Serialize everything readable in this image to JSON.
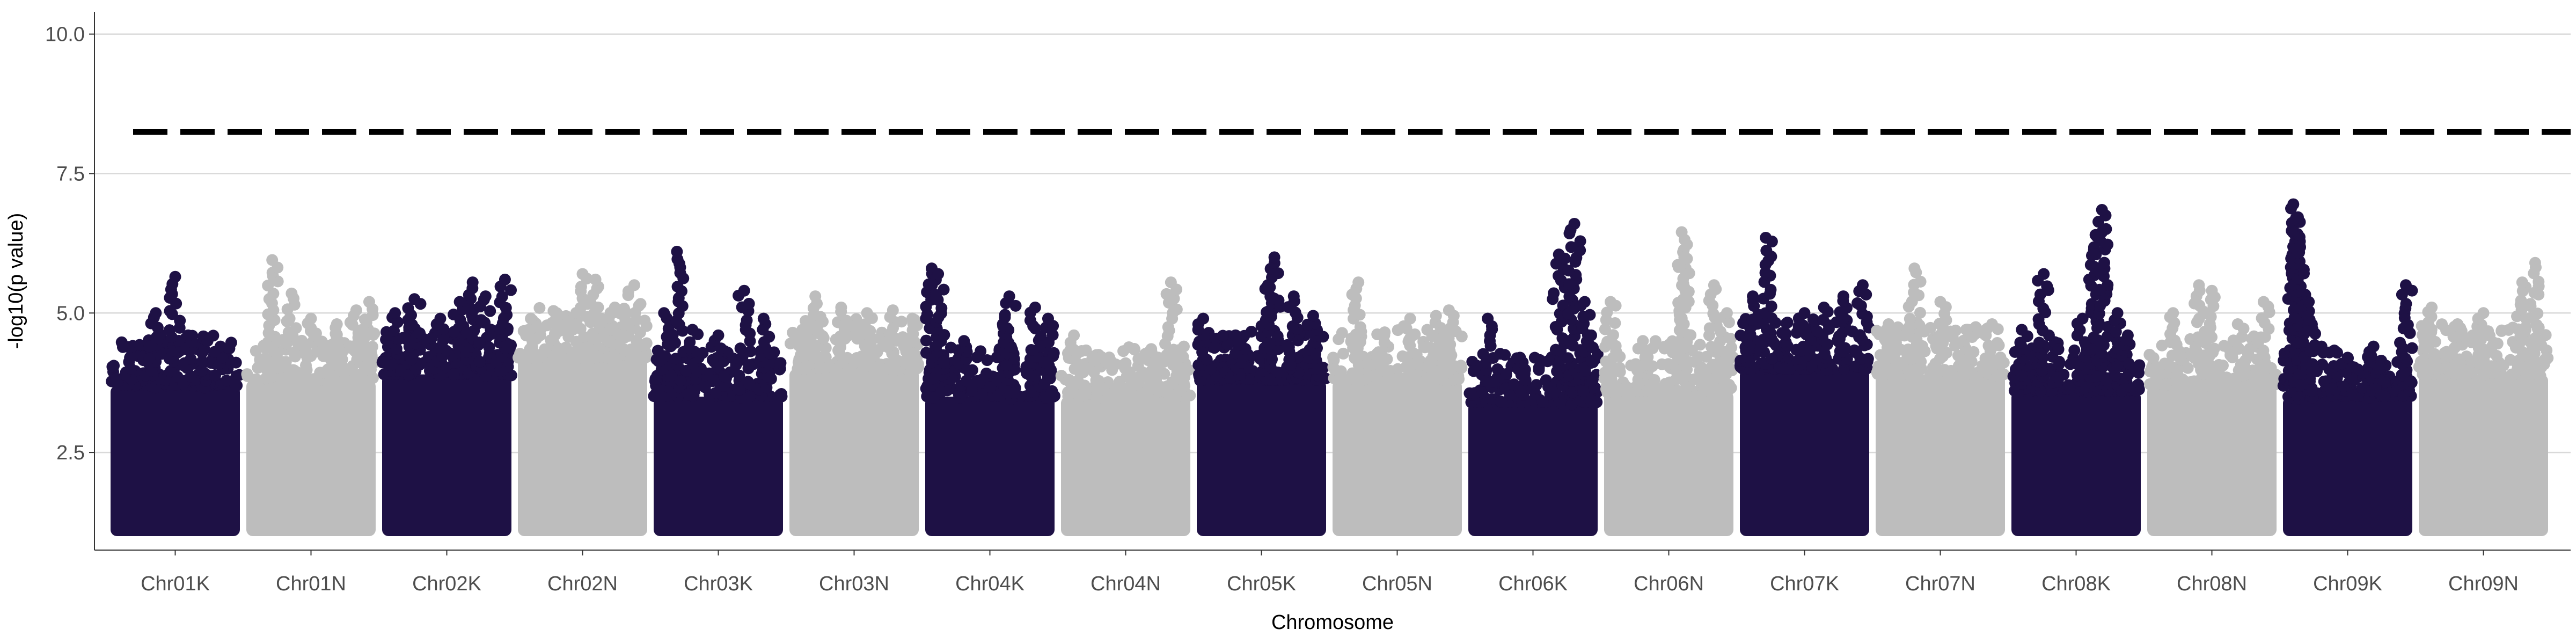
{
  "chart_data": {
    "type": "scatter",
    "subtype": "manhattan",
    "title": "",
    "xlabel": "Chromosome",
    "ylabel": "-log10(p value)",
    "ylim": [
      0.75,
      10.4
    ],
    "yticks": [
      2.5,
      5.0,
      7.5,
      10.0
    ],
    "ytick_labels": [
      "2.5",
      "5.0",
      "7.5",
      "10.0"
    ],
    "categories": [
      "Chr01K",
      "Chr01N",
      "Chr02K",
      "Chr02N",
      "Chr03K",
      "Chr03N",
      "Chr04K",
      "Chr04N",
      "Chr05K",
      "Chr05N",
      "Chr06K",
      "Chr06N",
      "Chr07K",
      "Chr07N",
      "Chr08K",
      "Chr08N",
      "Chr09K",
      "Chr09N"
    ],
    "point_colors": [
      "#1e1145",
      "#bdbdbd"
    ],
    "threshold": 8.25,
    "threshold_style": "dashed",
    "grid": "horizontal-major",
    "legend": "none",
    "min_plotted_value": 1.0,
    "chromosomes": [
      {
        "name": "Chr01K",
        "max": 5.65,
        "body_top": 3.7,
        "peaks": [
          [
            0.15,
            4.2
          ],
          [
            0.3,
            4.4
          ],
          [
            0.35,
            5.0
          ],
          [
            0.5,
            5.65
          ],
          [
            0.6,
            4.6
          ],
          [
            0.75,
            4.5
          ],
          [
            0.85,
            4.4
          ]
        ]
      },
      {
        "name": "Chr01N",
        "max": 5.95,
        "body_top": 3.8,
        "peaks": [
          [
            0.2,
            5.95
          ],
          [
            0.35,
            5.35
          ],
          [
            0.5,
            4.9
          ],
          [
            0.7,
            4.8
          ],
          [
            0.85,
            5.05
          ],
          [
            0.95,
            5.2
          ]
        ]
      },
      {
        "name": "Chr02K",
        "max": 5.6,
        "body_top": 3.9,
        "peaks": [
          [
            0.1,
            5.0
          ],
          [
            0.25,
            5.25
          ],
          [
            0.45,
            4.9
          ],
          [
            0.6,
            5.2
          ],
          [
            0.7,
            5.55
          ],
          [
            0.8,
            5.3
          ],
          [
            0.95,
            5.6
          ]
        ]
      },
      {
        "name": "Chr02N",
        "max": 5.7,
        "body_top": 4.2,
        "peaks": [
          [
            0.1,
            4.9
          ],
          [
            0.3,
            5.0
          ],
          [
            0.5,
            5.7
          ],
          [
            0.6,
            5.6
          ],
          [
            0.75,
            5.1
          ],
          [
            0.9,
            5.5
          ]
        ]
      },
      {
        "name": "Chr03K",
        "max": 6.1,
        "body_top": 3.5,
        "peaks": [
          [
            0.08,
            5.0
          ],
          [
            0.18,
            6.1
          ],
          [
            0.3,
            4.7
          ],
          [
            0.5,
            4.6
          ],
          [
            0.7,
            5.4
          ],
          [
            0.85,
            4.9
          ]
        ]
      },
      {
        "name": "Chr03N",
        "max": 5.3,
        "body_top": 4.0,
        "peaks": [
          [
            0.1,
            4.7
          ],
          [
            0.2,
            5.3
          ],
          [
            0.4,
            5.1
          ],
          [
            0.6,
            5.0
          ],
          [
            0.8,
            5.05
          ],
          [
            0.95,
            4.9
          ]
        ]
      },
      {
        "name": "Chr04K",
        "max": 5.8,
        "body_top": 3.5,
        "peaks": [
          [
            0.05,
            5.8
          ],
          [
            0.1,
            5.7
          ],
          [
            0.3,
            4.5
          ],
          [
            0.6,
            4.8
          ],
          [
            0.65,
            5.3
          ],
          [
            0.85,
            5.1
          ],
          [
            0.95,
            4.9
          ]
        ]
      },
      {
        "name": "Chr04N",
        "max": 5.55,
        "body_top": 3.5,
        "peaks": [
          [
            0.1,
            4.6
          ],
          [
            0.3,
            4.2
          ],
          [
            0.5,
            4.1
          ],
          [
            0.7,
            4.3
          ],
          [
            0.85,
            5.55
          ],
          [
            0.95,
            4.4
          ]
        ]
      },
      {
        "name": "Chr05K",
        "max": 6.0,
        "body_top": 3.8,
        "peaks": [
          [
            0.05,
            4.9
          ],
          [
            0.3,
            4.6
          ],
          [
            0.55,
            5.5
          ],
          [
            0.6,
            6.0
          ],
          [
            0.75,
            5.3
          ],
          [
            0.9,
            4.95
          ]
        ]
      },
      {
        "name": "Chr05N",
        "max": 5.55,
        "body_top": 3.8,
        "peaks": [
          [
            0.2,
            5.55
          ],
          [
            0.4,
            4.6
          ],
          [
            0.6,
            4.9
          ],
          [
            0.8,
            4.95
          ],
          [
            0.9,
            5.05
          ]
        ]
      },
      {
        "name": "Chr06K",
        "max": 6.6,
        "body_top": 3.4,
        "peaks": [
          [
            0.15,
            4.9
          ],
          [
            0.4,
            4.2
          ],
          [
            0.7,
            6.05
          ],
          [
            0.82,
            6.6
          ],
          [
            0.9,
            5.2
          ],
          [
            0.95,
            4.6
          ]
        ]
      },
      {
        "name": "Chr06N",
        "max": 6.45,
        "body_top": 3.6,
        "peaks": [
          [
            0.05,
            5.2
          ],
          [
            0.3,
            4.5
          ],
          [
            0.6,
            6.45
          ],
          [
            0.62,
            6.0
          ],
          [
            0.85,
            5.5
          ],
          [
            0.95,
            5.0
          ]
        ]
      },
      {
        "name": "Chr07K",
        "max": 6.35,
        "body_top": 4.0,
        "peaks": [
          [
            0.1,
            5.3
          ],
          [
            0.2,
            6.35
          ],
          [
            0.5,
            5.0
          ],
          [
            0.65,
            5.1
          ],
          [
            0.8,
            5.3
          ],
          [
            0.95,
            5.5
          ]
        ]
      },
      {
        "name": "Chr07N",
        "max": 5.8,
        "body_top": 3.9,
        "peaks": [
          [
            0.1,
            4.8
          ],
          [
            0.3,
            5.8
          ],
          [
            0.5,
            5.2
          ],
          [
            0.7,
            4.7
          ],
          [
            0.9,
            4.8
          ]
        ]
      },
      {
        "name": "Chr08K",
        "max": 6.85,
        "body_top": 3.6,
        "peaks": [
          [
            0.08,
            4.7
          ],
          [
            0.25,
            5.7
          ],
          [
            0.55,
            4.9
          ],
          [
            0.65,
            6.4
          ],
          [
            0.7,
            6.85
          ],
          [
            0.82,
            5.0
          ],
          [
            0.9,
            4.6
          ]
        ]
      },
      {
        "name": "Chr08N",
        "max": 5.5,
        "body_top": 3.7,
        "peaks": [
          [
            0.2,
            5.0
          ],
          [
            0.4,
            5.5
          ],
          [
            0.5,
            5.4
          ],
          [
            0.7,
            4.8
          ],
          [
            0.9,
            5.2
          ]
        ]
      },
      {
        "name": "Chr09K",
        "max": 6.95,
        "body_top": 3.5,
        "peaks": [
          [
            0.08,
            6.95
          ],
          [
            0.1,
            6.7
          ],
          [
            0.13,
            6.2
          ],
          [
            0.2,
            5.2
          ],
          [
            0.5,
            4.2
          ],
          [
            0.7,
            4.4
          ],
          [
            0.95,
            5.5
          ]
        ]
      },
      {
        "name": "Chr09N",
        "max": 5.9,
        "body_top": 3.9,
        "peaks": [
          [
            0.1,
            5.1
          ],
          [
            0.3,
            4.8
          ],
          [
            0.5,
            5.0
          ],
          [
            0.8,
            5.55
          ],
          [
            0.9,
            5.9
          ]
        ]
      }
    ]
  }
}
